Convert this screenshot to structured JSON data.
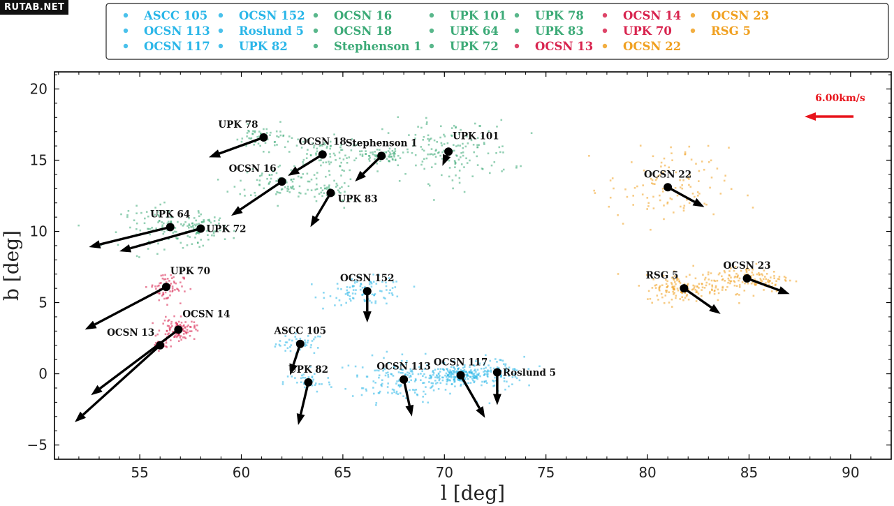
{
  "watermark": "RUTAB.NET",
  "chart_data": {
    "type": "scatter",
    "xlabel": "l [deg]",
    "ylabel": "b [deg]",
    "xlim": [
      50.8,
      92.0
    ],
    "ylim": [
      -6.0,
      21.2
    ],
    "xticks": [
      55,
      60,
      65,
      70,
      75,
      80,
      85,
      90
    ],
    "yticks": [
      -5,
      0,
      5,
      10,
      15,
      20
    ],
    "grid": false,
    "legend_position": "top",
    "velocity_scale_label": "6.00km/s",
    "velocity_scale_color": "#e8141c",
    "groups": [
      {
        "color": "#2ab6e8",
        "members": [
          "ASCC 105",
          "OCSN 113",
          "OCSN 117",
          "OCSN 152",
          "Roslund 5",
          "UPK 82"
        ]
      },
      {
        "color": "#3caa77",
        "members": [
          "OCSN 16",
          "OCSN 18",
          "Stephenson 1",
          "UPK 101",
          "UPK 64",
          "UPK 72",
          "UPK 78",
          "UPK 83"
        ]
      },
      {
        "color": "#d8234e",
        "members": [
          "OCSN 13",
          "OCSN 14",
          "UPK 70"
        ]
      },
      {
        "color": "#f0a020",
        "members": [
          "OCSN 22",
          "OCSN 23",
          "RSG 5"
        ]
      }
    ],
    "legend_columns": [
      [
        "ASCC 105",
        "OCSN 113",
        "OCSN 117"
      ],
      [
        "OCSN 152",
        "Roslund 5",
        "UPK 82"
      ],
      [
        "OCSN 16",
        "OCSN 18",
        "Stephenson 1"
      ],
      [
        "UPK 101",
        "UPK 64",
        "UPK 72"
      ],
      [
        "UPK 78",
        "UPK 83",
        "OCSN 13"
      ],
      [
        "OCSN 14",
        "UPK 70",
        "OCSN 22"
      ],
      [
        "OCSN 23",
        "RSG 5"
      ]
    ],
    "clusters": [
      {
        "name": "ASCC 105",
        "group": 0,
        "l": 62.9,
        "b": 2.1,
        "arrow_end": [
          62.4,
          -0.1
        ],
        "spread": [
          1.0,
          0.6
        ],
        "n": 45,
        "label_pos": "above"
      },
      {
        "name": "OCSN 113",
        "group": 0,
        "l": 68.0,
        "b": -0.4,
        "arrow_end": [
          68.4,
          -3.0
        ],
        "spread": [
          2.2,
          1.3
        ],
        "n": 170,
        "label_pos": "above"
      },
      {
        "name": "OCSN 117",
        "group": 0,
        "l": 70.8,
        "b": -0.1,
        "arrow_end": [
          72.0,
          -3.1
        ],
        "spread": [
          1.2,
          0.5
        ],
        "n": 200,
        "label_pos": "above"
      },
      {
        "name": "OCSN 152",
        "group": 0,
        "l": 66.2,
        "b": 5.8,
        "arrow_end": [
          66.2,
          3.6
        ],
        "spread": [
          1.6,
          0.8
        ],
        "n": 100,
        "label_pos": "above"
      },
      {
        "name": "Roslund 5",
        "group": 0,
        "l": 72.6,
        "b": 0.1,
        "arrow_end": [
          72.6,
          -2.2
        ],
        "spread": [
          1.1,
          0.9
        ],
        "n": 70,
        "label_pos": "right"
      },
      {
        "name": "UPK 82",
        "group": 0,
        "l": 63.3,
        "b": -0.6,
        "arrow_end": [
          62.8,
          -3.6
        ],
        "spread": [
          1.0,
          0.6
        ],
        "n": 40,
        "label_pos": "above"
      },
      {
        "name": "OCSN 16",
        "group": 1,
        "l": 62.0,
        "b": 13.5,
        "arrow_end": [
          59.5,
          11.1
        ],
        "spread": [
          1.8,
          1.0
        ],
        "n": 90,
        "label_pos": "aboveleft"
      },
      {
        "name": "OCSN 18",
        "group": 1,
        "l": 64.0,
        "b": 15.4,
        "arrow_end": [
          62.3,
          13.9
        ],
        "spread": [
          1.5,
          1.0
        ],
        "n": 80,
        "label_pos": "above"
      },
      {
        "name": "Stephenson 1",
        "group": 1,
        "l": 66.9,
        "b": 15.3,
        "arrow_end": [
          65.6,
          13.5
        ],
        "spread": [
          0.8,
          0.4
        ],
        "n": 70,
        "label_pos": "above"
      },
      {
        "name": "UPK 101",
        "group": 1,
        "l": 70.2,
        "b": 15.6,
        "arrow_end": [
          69.9,
          14.6
        ],
        "spread": [
          2.6,
          1.8
        ],
        "n": 160,
        "label_pos": "aboveright"
      },
      {
        "name": "UPK 64",
        "group": 1,
        "l": 56.5,
        "b": 10.3,
        "arrow_end": [
          52.5,
          8.9
        ],
        "spread": [
          2.0,
          1.2
        ],
        "n": 110,
        "label_pos": "above"
      },
      {
        "name": "UPK 72",
        "group": 1,
        "l": 58.0,
        "b": 10.2,
        "arrow_end": [
          54.0,
          8.6
        ],
        "spread": [
          1.0,
          0.9
        ],
        "n": 60,
        "label_pos": "right"
      },
      {
        "name": "UPK 78",
        "group": 1,
        "l": 61.1,
        "b": 16.6,
        "arrow_end": [
          58.4,
          15.2
        ],
        "spread": [
          1.2,
          0.7
        ],
        "n": 60,
        "label_pos": "aboveleft"
      },
      {
        "name": "UPK 83",
        "group": 1,
        "l": 64.4,
        "b": 12.7,
        "arrow_end": [
          63.4,
          10.3
        ],
        "spread": [
          1.0,
          0.7
        ],
        "n": 50,
        "label_pos": "belowright"
      },
      {
        "name": "OCSN 13",
        "group": 2,
        "l": 56.0,
        "b": 2.0,
        "arrow_end": [
          51.8,
          -3.4
        ],
        "spread": [
          0.3,
          0.3
        ],
        "n": 25,
        "label_pos": "left"
      },
      {
        "name": "OCSN 14",
        "group": 2,
        "l": 56.9,
        "b": 3.1,
        "arrow_end": [
          52.6,
          -1.5
        ],
        "spread": [
          0.7,
          0.6
        ],
        "n": 110,
        "label_pos": "aboveright"
      },
      {
        "name": "UPK 70",
        "group": 2,
        "l": 56.3,
        "b": 6.1,
        "arrow_end": [
          52.3,
          3.1
        ],
        "spread": [
          0.7,
          0.9
        ],
        "n": 70,
        "label_pos": "aboveright"
      },
      {
        "name": "OCSN 22",
        "group": 3,
        "l": 81.0,
        "b": 13.1,
        "arrow_end": [
          82.8,
          11.7
        ],
        "spread": [
          2.5,
          2.3
        ],
        "n": 110,
        "label_pos": "above"
      },
      {
        "name": "OCSN 23",
        "group": 3,
        "l": 84.9,
        "b": 6.7,
        "arrow_end": [
          87.0,
          5.6
        ],
        "spread": [
          1.8,
          0.8
        ],
        "n": 140,
        "label_pos": "above"
      },
      {
        "name": "RSG 5",
        "group": 3,
        "l": 81.8,
        "b": 6.0,
        "arrow_end": [
          83.6,
          4.2
        ],
        "spread": [
          1.6,
          0.8
        ],
        "n": 140,
        "label_pos": "aboveleft"
      }
    ]
  }
}
